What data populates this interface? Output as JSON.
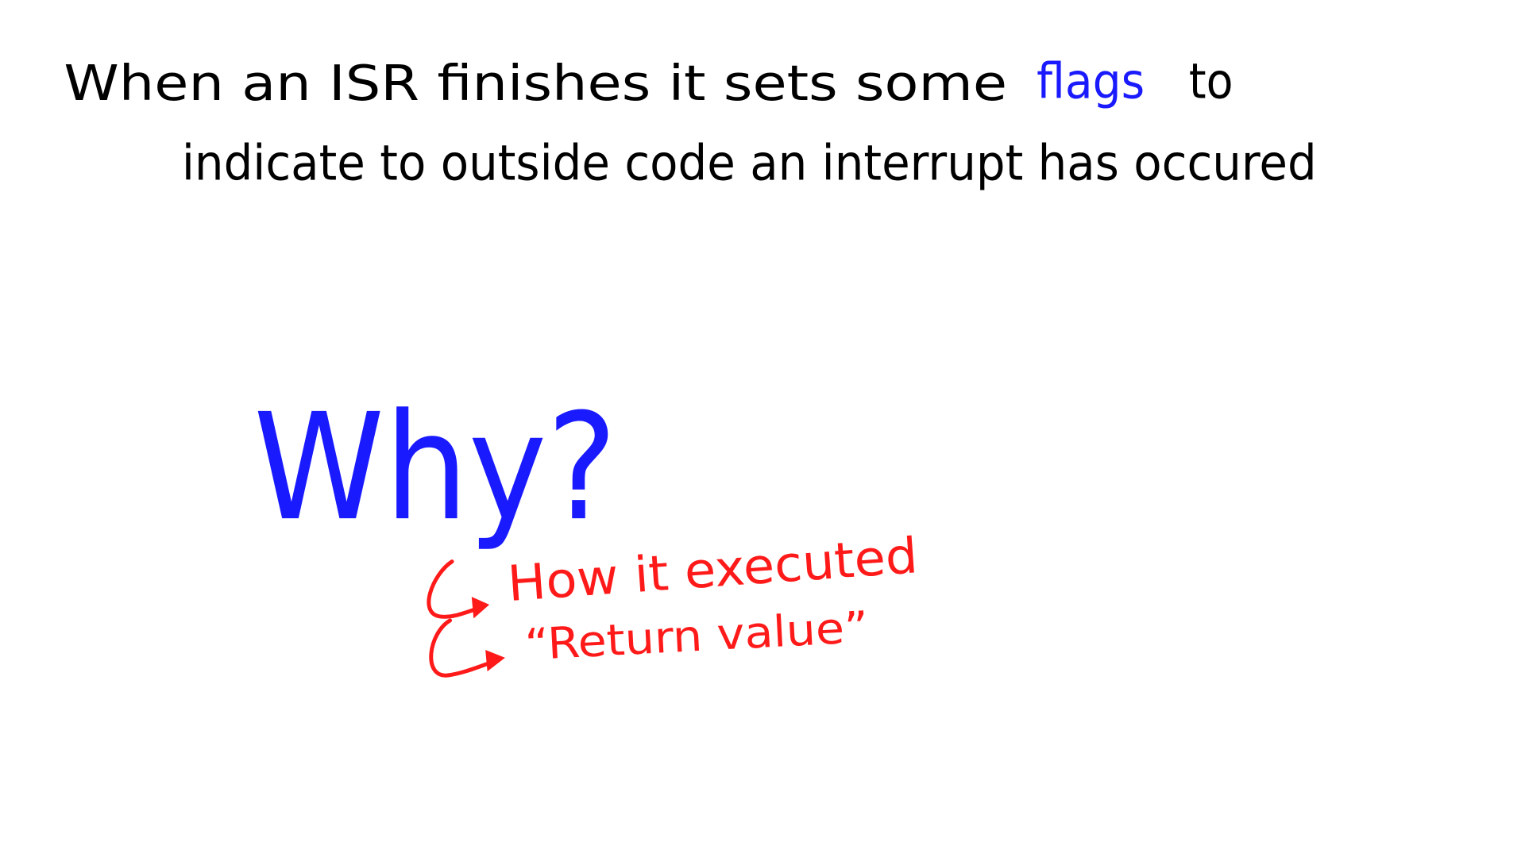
{
  "note": {
    "line1": "When an ISR finishes it sets some",
    "highlight": "flags",
    "line1_end": "to",
    "line2": "indicate to outside code an interrupt has occured"
  },
  "question": "Why?",
  "answers": [
    "How it executed",
    "“Return value”"
  ]
}
